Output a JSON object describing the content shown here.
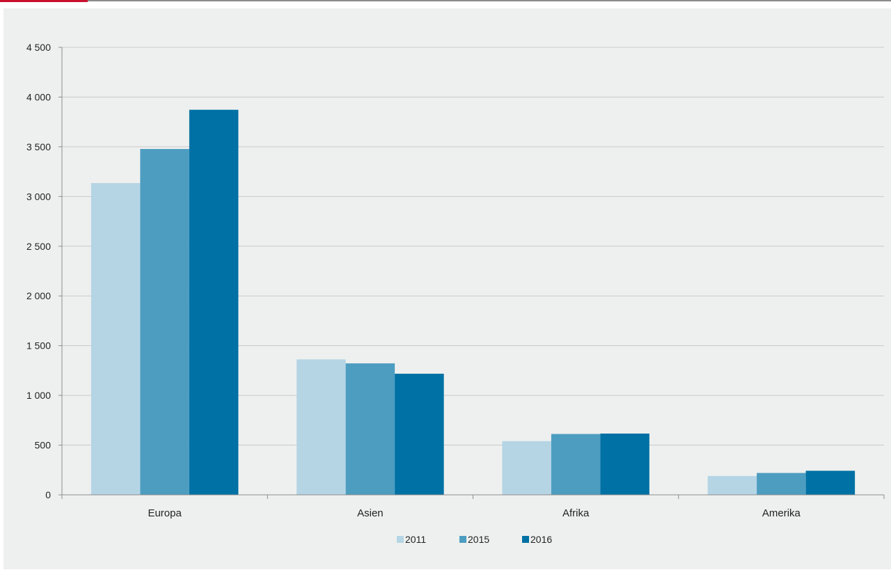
{
  "chart_data": {
    "type": "bar",
    "categories": [
      "Europa",
      "Asien",
      "Afrika",
      "Amerika"
    ],
    "series": [
      {
        "name": "2011",
        "color": "#b5d5e5",
        "values": [
          3135,
          1362,
          540,
          190
        ]
      },
      {
        "name": "2015",
        "color": "#4d9dc1",
        "values": [
          3478,
          1322,
          612,
          220
        ]
      },
      {
        "name": "2016",
        "color": "#0071a4",
        "values": [
          3872,
          1218,
          616,
          242
        ]
      }
    ],
    "ylim": [
      0,
      4500
    ],
    "yticks": [
      0,
      500,
      1000,
      1500,
      2000,
      2500,
      3000,
      3500,
      4000,
      4500
    ],
    "ytick_labels": [
      "0",
      "500",
      "1 000",
      "1 500",
      "2 000",
      "2 500",
      "3 000",
      "3 500",
      "4 000",
      "4 500"
    ],
    "grid": true,
    "legend_position": "bottom-center",
    "title": "",
    "xlabel": "",
    "ylabel": ""
  }
}
